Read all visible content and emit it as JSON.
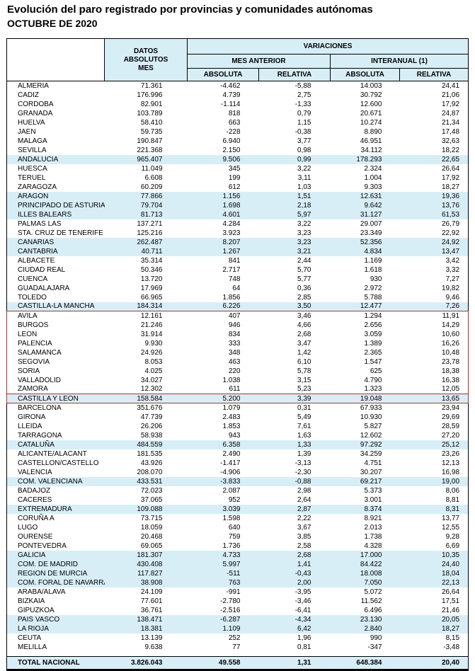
{
  "title": "Evolución del paro registrado por provincias y comunidades autónomas",
  "subtitle": "OCTUBRE DE 2020",
  "colors": {
    "highlight": "#d8eef7",
    "header_bg": "#d8eef7",
    "red_box": "#b03030",
    "border": "#000000"
  },
  "table": {
    "header": {
      "corner": "",
      "datos": "DATOS\nABSOLUTOS\nMES",
      "variaciones": "VARIACIONES",
      "mes_anterior": "MES ANTERIOR",
      "interanual": "INTERANUAL (1)",
      "mes_absoluta": "ABSOLUTA",
      "mes_relativa": "RELATIVA",
      "inter_absoluta": "ABSOLUTA",
      "inter_relativa": "RELATIVA"
    },
    "rows": [
      {
        "name": "ALMERIA",
        "values": [
          "71.361",
          "-4.462",
          "-5,88",
          "14.003",
          "24,41"
        ],
        "hl": false,
        "box": ""
      },
      {
        "name": "CADIZ",
        "values": [
          "176.996",
          "4.739",
          "2,75",
          "30.792",
          "21,06"
        ],
        "hl": false,
        "box": ""
      },
      {
        "name": "CORDOBA",
        "values": [
          "82.901",
          "-1.114",
          "-1,33",
          "12.600",
          "17,92"
        ],
        "hl": false,
        "box": ""
      },
      {
        "name": "GRANADA",
        "values": [
          "103.789",
          "818",
          "0,79",
          "20.671",
          "24,87"
        ],
        "hl": false,
        "box": ""
      },
      {
        "name": "HUELVA",
        "values": [
          "58.410",
          "663",
          "1,15",
          "10.274",
          "21,34"
        ],
        "hl": false,
        "box": ""
      },
      {
        "name": "JAEN",
        "values": [
          "59.735",
          "-228",
          "-0,38",
          "8.890",
          "17,48"
        ],
        "hl": false,
        "box": ""
      },
      {
        "name": "MALAGA",
        "values": [
          "190.847",
          "6.940",
          "3,77",
          "46.951",
          "32,63"
        ],
        "hl": false,
        "box": ""
      },
      {
        "name": "SEVILLA",
        "values": [
          "221.368",
          "2.150",
          "0,98",
          "34.112",
          "18,22"
        ],
        "hl": false,
        "box": ""
      },
      {
        "name": "ANDALUCIA",
        "values": [
          "965.407",
          "9.506",
          "0,99",
          "178.293",
          "22,65"
        ],
        "hl": true,
        "box": ""
      },
      {
        "name": "HUESCA",
        "values": [
          "11.049",
          "345",
          "3,22",
          "2.324",
          "26,64"
        ],
        "hl": false,
        "box": ""
      },
      {
        "name": "TERUEL",
        "values": [
          "6.608",
          "199",
          "3,11",
          "1.004",
          "17,92"
        ],
        "hl": false,
        "box": ""
      },
      {
        "name": "ZARAGOZA",
        "values": [
          "60.209",
          "612",
          "1,03",
          "9.303",
          "18,27"
        ],
        "hl": false,
        "box": ""
      },
      {
        "name": "ARAGON",
        "values": [
          "77.866",
          "1.156",
          "1,51",
          "12.631",
          "19,36"
        ],
        "hl": true,
        "box": ""
      },
      {
        "name": "PRINCIPADO DE ASTURIAS",
        "values": [
          "79.704",
          "1.698",
          "2,18",
          "9.642",
          "13,76"
        ],
        "hl": true,
        "box": ""
      },
      {
        "name": "ILLES BALEARS",
        "values": [
          "81.713",
          "4.601",
          "5,97",
          "31.127",
          "61,53"
        ],
        "hl": true,
        "box": ""
      },
      {
        "name": "PALMAS LAS",
        "values": [
          "137.271",
          "4.284",
          "3,22",
          "29.007",
          "26,79"
        ],
        "hl": false,
        "box": ""
      },
      {
        "name": "STA. CRUZ DE TENERIFE",
        "values": [
          "125.216",
          "3.923",
          "3,23",
          "23.349",
          "22,92"
        ],
        "hl": false,
        "box": ""
      },
      {
        "name": "CANARIAS",
        "values": [
          "262.487",
          "8.207",
          "3,23",
          "52.356",
          "24,92"
        ],
        "hl": true,
        "box": ""
      },
      {
        "name": "CANTABRIA",
        "values": [
          "40.711",
          "1.267",
          "3,21",
          "4.834",
          "13,47"
        ],
        "hl": true,
        "box": ""
      },
      {
        "name": "ALBACETE",
        "values": [
          "35.314",
          "841",
          "2,44",
          "1.169",
          "3,42"
        ],
        "hl": false,
        "box": ""
      },
      {
        "name": "CIUDAD REAL",
        "values": [
          "50.346",
          "2.717",
          "5,70",
          "1.618",
          "3,32"
        ],
        "hl": false,
        "box": ""
      },
      {
        "name": "CUENCA",
        "values": [
          "13.720",
          "748",
          "5,77",
          "930",
          "7,27"
        ],
        "hl": false,
        "box": ""
      },
      {
        "name": "GUADALAJARA",
        "values": [
          "17.969",
          "64",
          "0,36",
          "2.972",
          "19,82"
        ],
        "hl": false,
        "box": ""
      },
      {
        "name": "TOLEDO",
        "values": [
          "66.965",
          "1.856",
          "2,85",
          "5.788",
          "9,46"
        ],
        "hl": false,
        "box": ""
      },
      {
        "name": "CASTILLA-LA MANCHA",
        "values": [
          "184.314",
          "6.226",
          "3,50",
          "12.477",
          "7,26"
        ],
        "hl": true,
        "box": ""
      },
      {
        "name": "AVILA",
        "values": [
          "12.161",
          "407",
          "3,46",
          "1.294",
          "11,91"
        ],
        "hl": false,
        "box": "start"
      },
      {
        "name": "BURGOS",
        "values": [
          "21.246",
          "946",
          "4,66",
          "2.656",
          "14,29"
        ],
        "hl": false,
        "box": "mid"
      },
      {
        "name": "LEON",
        "values": [
          "31.914",
          "834",
          "2,68",
          "3.059",
          "10,60"
        ],
        "hl": false,
        "box": "mid"
      },
      {
        "name": "PALENCIA",
        "values": [
          "9.930",
          "333",
          "3,47",
          "1.389",
          "16,26"
        ],
        "hl": false,
        "box": "mid"
      },
      {
        "name": "SALAMANCA",
        "values": [
          "24.926",
          "348",
          "1,42",
          "2.365",
          "10,48"
        ],
        "hl": false,
        "box": "mid"
      },
      {
        "name": "SEGOVIA",
        "values": [
          "8.053",
          "463",
          "6,10",
          "1.547",
          "23,78"
        ],
        "hl": false,
        "box": "mid"
      },
      {
        "name": "SORIA",
        "values": [
          "4.025",
          "220",
          "5,78",
          "625",
          "18,38"
        ],
        "hl": false,
        "box": "mid"
      },
      {
        "name": "VALLADOLID",
        "values": [
          "34.027",
          "1.038",
          "3,15",
          "4.790",
          "16,38"
        ],
        "hl": false,
        "box": "mid"
      },
      {
        "name": "ZAMORA",
        "values": [
          "12.302",
          "611",
          "5,23",
          "1.323",
          "12,05"
        ],
        "hl": false,
        "box": "mid"
      },
      {
        "name": "CASTILLA Y LEON",
        "values": [
          "158.584",
          "5.200",
          "3,39",
          "19.048",
          "13,65"
        ],
        "hl": true,
        "box": "full"
      },
      {
        "name": "BARCELONA",
        "values": [
          "351.676",
          "1.079",
          "0,31",
          "67.933",
          "23,94"
        ],
        "hl": false,
        "box": ""
      },
      {
        "name": "GIRONA",
        "values": [
          "47.739",
          "2.483",
          "5,49",
          "10.930",
          "29,69"
        ],
        "hl": false,
        "box": ""
      },
      {
        "name": "LLEIDA",
        "values": [
          "26.206",
          "1.853",
          "7,61",
          "5.827",
          "28,59"
        ],
        "hl": false,
        "box": ""
      },
      {
        "name": "TARRAGONA",
        "values": [
          "58.938",
          "943",
          "1,63",
          "12.602",
          "27,20"
        ],
        "hl": false,
        "box": ""
      },
      {
        "name": "CATALUÑA",
        "values": [
          "484.559",
          "6.358",
          "1,33",
          "97.292",
          "25,12"
        ],
        "hl": true,
        "box": ""
      },
      {
        "name": "ALICANTE/ALACANT",
        "values": [
          "181.535",
          "2.490",
          "1,39",
          "34.259",
          "23,26"
        ],
        "hl": false,
        "box": ""
      },
      {
        "name": "CASTELLON/CASTELLO",
        "values": [
          "43.926",
          "-1.417",
          "-3,13",
          "4.751",
          "12,13"
        ],
        "hl": false,
        "box": ""
      },
      {
        "name": "VALENCIA",
        "values": [
          "208.070",
          "-4.906",
          "-2,30",
          "30.207",
          "16,98"
        ],
        "hl": false,
        "box": ""
      },
      {
        "name": "COM. VALENCIANA",
        "values": [
          "433.531",
          "-3.833",
          "-0,88",
          "69.217",
          "19,00"
        ],
        "hl": true,
        "box": ""
      },
      {
        "name": "BADAJOZ",
        "values": [
          "72.023",
          "2.087",
          "2,98",
          "5.373",
          "8,06"
        ],
        "hl": false,
        "box": ""
      },
      {
        "name": "CACERES",
        "values": [
          "37.065",
          "952",
          "2,64",
          "3.001",
          "8,81"
        ],
        "hl": false,
        "box": ""
      },
      {
        "name": "EXTREMADURA",
        "values": [
          "109.088",
          "3.039",
          "2,87",
          "8.374",
          "8,31"
        ],
        "hl": true,
        "box": ""
      },
      {
        "name": "CORUÑA A",
        "values": [
          "73.715",
          "1.598",
          "2,22",
          "8.921",
          "13,77"
        ],
        "hl": false,
        "box": ""
      },
      {
        "name": "LUGO",
        "values": [
          "18.059",
          "640",
          "3,67",
          "2.013",
          "12,55"
        ],
        "hl": false,
        "box": ""
      },
      {
        "name": "OURENSE",
        "values": [
          "20.468",
          "759",
          "3,85",
          "1.738",
          "9,28"
        ],
        "hl": false,
        "box": ""
      },
      {
        "name": "PONTEVEDRA",
        "values": [
          "69.065",
          "1.736",
          "2,58",
          "4.328",
          "6,69"
        ],
        "hl": false,
        "box": ""
      },
      {
        "name": "GALICIA",
        "values": [
          "181.307",
          "4.733",
          "2,68",
          "17.000",
          "10,35"
        ],
        "hl": true,
        "box": ""
      },
      {
        "name": "COM. DE MADRID",
        "values": [
          "430.408",
          "5.997",
          "1,41",
          "84.422",
          "24,40"
        ],
        "hl": true,
        "box": ""
      },
      {
        "name": "REGION DE MURCIA",
        "values": [
          "117.827",
          "-511",
          "-0,43",
          "18.008",
          "18,04"
        ],
        "hl": true,
        "box": ""
      },
      {
        "name": "COM. FORAL DE NAVARRA",
        "values": [
          "38.908",
          "763",
          "2,00",
          "7.050",
          "22,13"
        ],
        "hl": true,
        "box": ""
      },
      {
        "name": "ARABA/ALAVA",
        "values": [
          "24.109",
          "-991",
          "-3,95",
          "5.072",
          "26,64"
        ],
        "hl": false,
        "box": ""
      },
      {
        "name": "BIZKAIA",
        "values": [
          "77.601",
          "-2.780",
          "-3,46",
          "11.562",
          "17,51"
        ],
        "hl": false,
        "box": ""
      },
      {
        "name": "GIPUZKOA",
        "values": [
          "36.761",
          "-2.516",
          "-6,41",
          "6.496",
          "21,46"
        ],
        "hl": false,
        "box": ""
      },
      {
        "name": "PAIS VASCO",
        "values": [
          "138.471",
          "-6.287",
          "-4,34",
          "23.130",
          "20,05"
        ],
        "hl": true,
        "box": ""
      },
      {
        "name": "LA RIOJA",
        "values": [
          "18.381",
          "1.109",
          "6,42",
          "2.840",
          "18,27"
        ],
        "hl": true,
        "box": ""
      },
      {
        "name": "CEUTA",
        "values": [
          "13.139",
          "252",
          "1,96",
          "990",
          "8,15"
        ],
        "hl": false,
        "box": ""
      },
      {
        "name": "MELILLA",
        "values": [
          "9.638",
          "77",
          "0,81",
          "-347",
          "-3,48"
        ],
        "hl": false,
        "box": ""
      }
    ],
    "total": {
      "name": "TOTAL NACIONAL",
      "values": [
        "3.826.043",
        "49.558",
        "1,31",
        "648.384",
        "20,40"
      ],
      "hl": true,
      "box": ""
    }
  }
}
